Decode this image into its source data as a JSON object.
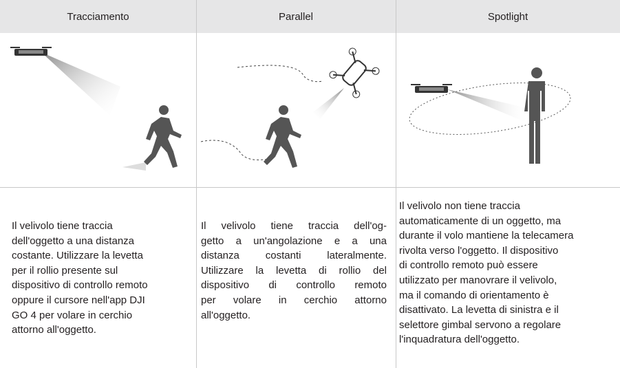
{
  "columns": [
    {
      "header": "Tracciamento",
      "lines": [
        "Il velivolo tiene traccia",
        "dell'oggetto a una distanza",
        "costante. Utilizzare la levetta",
        "per il rollio presente sul",
        "dispositivo di controllo remoto",
        "oppure il cursore nell'app DJI",
        "GO 4 per volare in cerchio",
        "attorno all'oggetto."
      ]
    },
    {
      "header": "Parallel",
      "lines": [
        "Il velivolo tiene traccia dell'og-",
        "getto a un'angolazione e a una",
        "distanza costanti lateralmente.",
        "Utilizzare la levetta di rollio del",
        "dispositivo di controllo remoto",
        "per volare in cerchio attorno",
        "all'oggetto."
      ]
    },
    {
      "header": "Spotlight",
      "lines": [
        "Il velivolo non tiene traccia",
        "automaticamente di un oggetto, ma",
        "durante il volo mantiene la telecamera",
        "rivolta verso l'oggetto. Il dispositivo",
        "di controllo remoto può essere",
        "utilizzato per manovrare il velivolo,",
        "ma il comando di orientamento è",
        "disattivato. La levetta di sinistra e il",
        "selettore gimbal servono a regolare",
        "l'inquadratura dell'oggetto."
      ]
    }
  ]
}
